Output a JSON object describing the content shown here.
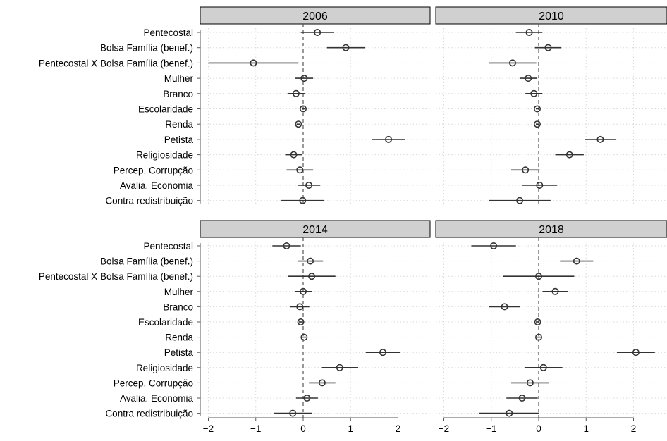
{
  "chart_data": {
    "type": "coefficient-plot",
    "facet_layout": "2x2",
    "xlim": [
      -2.2,
      2.55
    ],
    "x_ticks": [
      -2,
      -1,
      0,
      1,
      2
    ],
    "x_tick_labels": [
      "−2",
      "−1",
      "0",
      "1",
      "2"
    ],
    "reference_line": 0,
    "grid": true,
    "variables": [
      "Pentecostal",
      "Bolsa Família (benef.)",
      "Pentecostal X Bolsa Família (benef.)",
      "Mulher",
      "Branco",
      "Escolaridade",
      "Renda",
      "Petista",
      "Religiosidade",
      "Percep. Corrupção",
      "Avalia. Economia",
      "Contra redistribuição"
    ],
    "panels": [
      {
        "title": "2006",
        "estimates": [
          {
            "est": 0.3,
            "lo": -0.05,
            "hi": 0.65
          },
          {
            "est": 0.9,
            "lo": 0.5,
            "hi": 1.3
          },
          {
            "est": -1.05,
            "lo": -2.0,
            "hi": -0.1
          },
          {
            "est": 0.02,
            "lo": -0.17,
            "hi": 0.21
          },
          {
            "est": -0.15,
            "lo": -0.33,
            "hi": 0.03
          },
          {
            "est": 0.0,
            "lo": -0.03,
            "hi": 0.03
          },
          {
            "est": -0.1,
            "lo": -0.14,
            "hi": -0.06
          },
          {
            "est": 1.8,
            "lo": 1.45,
            "hi": 2.15
          },
          {
            "est": -0.2,
            "lo": -0.38,
            "hi": -0.02
          },
          {
            "est": -0.07,
            "lo": -0.35,
            "hi": 0.21
          },
          {
            "est": 0.12,
            "lo": -0.12,
            "hi": 0.36
          },
          {
            "est": -0.01,
            "lo": -0.46,
            "hi": 0.44
          }
        ]
      },
      {
        "title": "2010",
        "estimates": [
          {
            "est": -0.2,
            "lo": -0.48,
            "hi": 0.08
          },
          {
            "est": 0.2,
            "lo": -0.08,
            "hi": 0.48
          },
          {
            "est": -0.55,
            "lo": -1.05,
            "hi": -0.05
          },
          {
            "est": -0.22,
            "lo": -0.4,
            "hi": -0.04
          },
          {
            "est": -0.1,
            "lo": -0.28,
            "hi": 0.08
          },
          {
            "est": -0.03,
            "lo": -0.06,
            "hi": 0.0
          },
          {
            "est": -0.03,
            "lo": -0.06,
            "hi": 0.0
          },
          {
            "est": 1.3,
            "lo": 0.98,
            "hi": 1.62
          },
          {
            "est": 0.65,
            "lo": 0.35,
            "hi": 0.95
          },
          {
            "est": -0.28,
            "lo": -0.58,
            "hi": 0.02
          },
          {
            "est": 0.02,
            "lo": -0.35,
            "hi": 0.39
          },
          {
            "est": -0.4,
            "lo": -1.05,
            "hi": 0.25
          }
        ]
      },
      {
        "title": "2014",
        "estimates": [
          {
            "est": -0.35,
            "lo": -0.65,
            "hi": -0.05
          },
          {
            "est": 0.15,
            "lo": -0.12,
            "hi": 0.42
          },
          {
            "est": 0.18,
            "lo": -0.32,
            "hi": 0.68
          },
          {
            "est": 0.0,
            "lo": -0.18,
            "hi": 0.18
          },
          {
            "est": -0.07,
            "lo": -0.27,
            "hi": 0.13
          },
          {
            "est": -0.05,
            "lo": -0.09,
            "hi": -0.01
          },
          {
            "est": 0.02,
            "lo": -0.02,
            "hi": 0.06
          },
          {
            "est": 1.68,
            "lo": 1.32,
            "hi": 2.04
          },
          {
            "est": 0.77,
            "lo": 0.38,
            "hi": 1.16
          },
          {
            "est": 0.4,
            "lo": 0.12,
            "hi": 0.68
          },
          {
            "est": 0.08,
            "lo": -0.15,
            "hi": 0.31
          },
          {
            "est": -0.22,
            "lo": -0.62,
            "hi": 0.18
          }
        ]
      },
      {
        "title": "2018",
        "estimates": [
          {
            "est": -0.95,
            "lo": -1.42,
            "hi": -0.48
          },
          {
            "est": 0.8,
            "lo": 0.45,
            "hi": 1.15
          },
          {
            "est": 0.0,
            "lo": -0.75,
            "hi": 0.75
          },
          {
            "est": 0.35,
            "lo": 0.08,
            "hi": 0.62
          },
          {
            "est": -0.72,
            "lo": -1.05,
            "hi": -0.39
          },
          {
            "est": -0.02,
            "lo": -0.06,
            "hi": 0.02
          },
          {
            "est": 0.0,
            "lo": -0.04,
            "hi": 0.04
          },
          {
            "est": 2.05,
            "lo": 1.65,
            "hi": 2.45
          },
          {
            "est": 0.1,
            "lo": -0.3,
            "hi": 0.5
          },
          {
            "est": -0.18,
            "lo": -0.58,
            "hi": 0.22
          },
          {
            "est": -0.35,
            "lo": -0.68,
            "hi": -0.02
          },
          {
            "est": -0.62,
            "lo": -1.25,
            "hi": 0.01
          }
        ]
      }
    ],
    "colors": {
      "strip_fill": "#d0d0d0",
      "marker": "#333333",
      "zero_line": "#555555",
      "grid": "#d9d9d9"
    }
  }
}
